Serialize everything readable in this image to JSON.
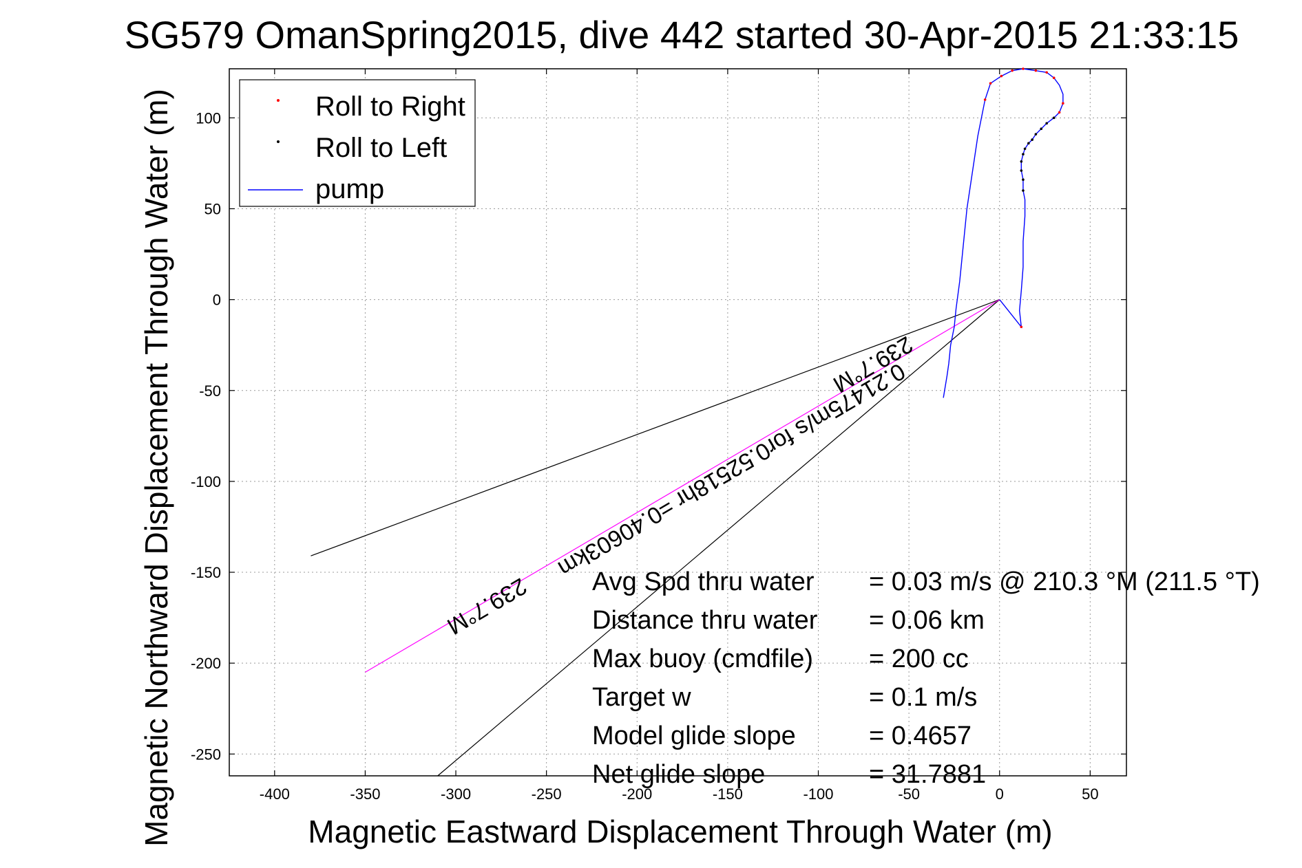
{
  "chart_data": {
    "type": "line",
    "title": "SG579 OmanSpring2015, dive 442 started 30-Apr-2015 21:33:15",
    "xlabel": "Magnetic Eastward Displacement Through Water (m)",
    "ylabel": "Magnetic Northward Displacement Through Water (m)",
    "xlim": [
      -425,
      70
    ],
    "ylim": [
      -262,
      127
    ],
    "xticks": [
      -400,
      -350,
      -300,
      -250,
      -200,
      -150,
      -100,
      -50,
      0,
      50
    ],
    "yticks": [
      -250,
      -200,
      -150,
      -100,
      -50,
      0,
      50,
      100
    ],
    "grid": true,
    "legend_position": "top-left",
    "legend": [
      {
        "label": "Roll to Right",
        "color": "#ff0000",
        "marker": "dot"
      },
      {
        "label": "Roll to Left",
        "color": "#000000",
        "marker": "dot"
      },
      {
        "label": "pump",
        "color": "#0000ff",
        "marker": "line"
      }
    ],
    "series": [
      {
        "name": "pump",
        "color": "#0000ff",
        "x": [
          0,
          12,
          11,
          12,
          13,
          13,
          14,
          14,
          13,
          13,
          12,
          12,
          13,
          14,
          16,
          18,
          20,
          23,
          26,
          30,
          33,
          35,
          35,
          33,
          30,
          26,
          20,
          13,
          7,
          1,
          -5,
          -8,
          -12,
          -15,
          -18,
          -20,
          -22,
          -24,
          -25,
          -27,
          -28,
          -29,
          -30,
          -31
        ],
        "y": [
          0,
          -15,
          -6,
          5,
          18,
          32,
          46,
          55,
          60,
          66,
          71,
          76,
          80,
          83,
          86,
          88,
          91,
          94,
          97,
          100,
          103,
          108,
          113,
          118,
          122,
          125,
          126,
          127,
          126,
          123,
          119,
          110,
          90,
          70,
          50,
          30,
          10,
          -5,
          -15,
          -25,
          -35,
          -42,
          -48,
          -54
        ]
      },
      {
        "name": "Roll to Right",
        "color": "#ff0000",
        "x": [
          12,
          33,
          35,
          30,
          26,
          20,
          13,
          7,
          1,
          -5,
          -8
        ],
        "y": [
          -15,
          103,
          108,
          122,
          125,
          126,
          127,
          126,
          123,
          119,
          110
        ]
      },
      {
        "name": "Roll to Left",
        "color": "#000000",
        "x": [
          13,
          13,
          12,
          12,
          13,
          14,
          16,
          18,
          20,
          23,
          26,
          30
        ],
        "y": [
          60,
          66,
          71,
          76,
          80,
          83,
          86,
          88,
          91,
          94,
          97,
          100
        ]
      }
    ],
    "heading_lines": [
      {
        "color": "#000000",
        "x": [
          0,
          -380
        ],
        "y": [
          0,
          -141
        ]
      },
      {
        "color": "#000000",
        "x": [
          0,
          -310
        ],
        "y": [
          0,
          -262
        ]
      },
      {
        "color": "#ff00ff",
        "x": [
          0,
          -350
        ],
        "y": [
          0,
          -205
        ]
      }
    ],
    "rotated_labels": [
      {
        "text": "239.7°M",
        "x": -72,
        "y": -32,
        "color": "#000000"
      },
      {
        "text": "0.21475m/s for0.52518hr =0.40603km",
        "x": -150,
        "y": -90,
        "color": "#000000"
      },
      {
        "text": "239.7°M",
        "x": -285,
        "y": -165,
        "color": "#000000"
      }
    ],
    "annotations": [
      {
        "label": "Avg Spd thru water",
        "value": "=  0.03 m/s @ 210.3 °M (211.5 °T)"
      },
      {
        "label": "Distance thru water",
        "value": "=  0.06 km"
      },
      {
        "label": "Max buoy (cmdfile)",
        "value": "= 200 cc"
      },
      {
        "label": "Target w",
        "value": "= 0.1 m/s"
      },
      {
        "label": "Model glide slope",
        "value": "= 0.4657"
      },
      {
        "label": "Net glide slope",
        "value": "= 31.7881"
      }
    ]
  }
}
